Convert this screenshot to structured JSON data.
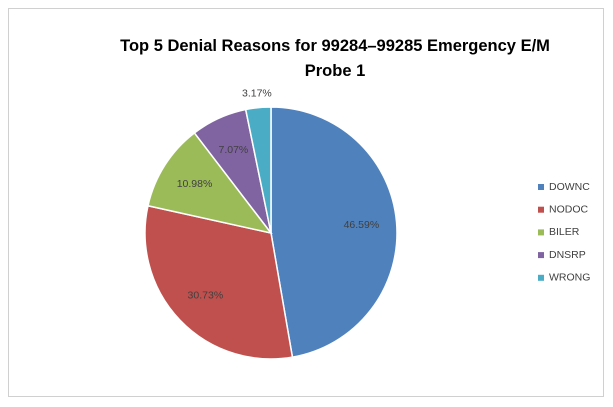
{
  "chart_data": {
    "type": "pie",
    "title": "Top 5 Denial Reasons for 99284–99285 Emergency E/M Probe 1",
    "categories": [
      "DOWNC",
      "NODOC",
      "BILER",
      "DNSRP",
      "WRONG"
    ],
    "values": [
      46.59,
      30.73,
      10.98,
      7.07,
      3.17
    ],
    "value_labels": [
      "46.59%",
      "30.73%",
      "10.98%",
      "7.07%",
      "3.17%"
    ],
    "colors": [
      "#4f81bd",
      "#c0504d",
      "#9bbb59",
      "#8064a2",
      "#4bacc6"
    ],
    "legend": "right"
  }
}
